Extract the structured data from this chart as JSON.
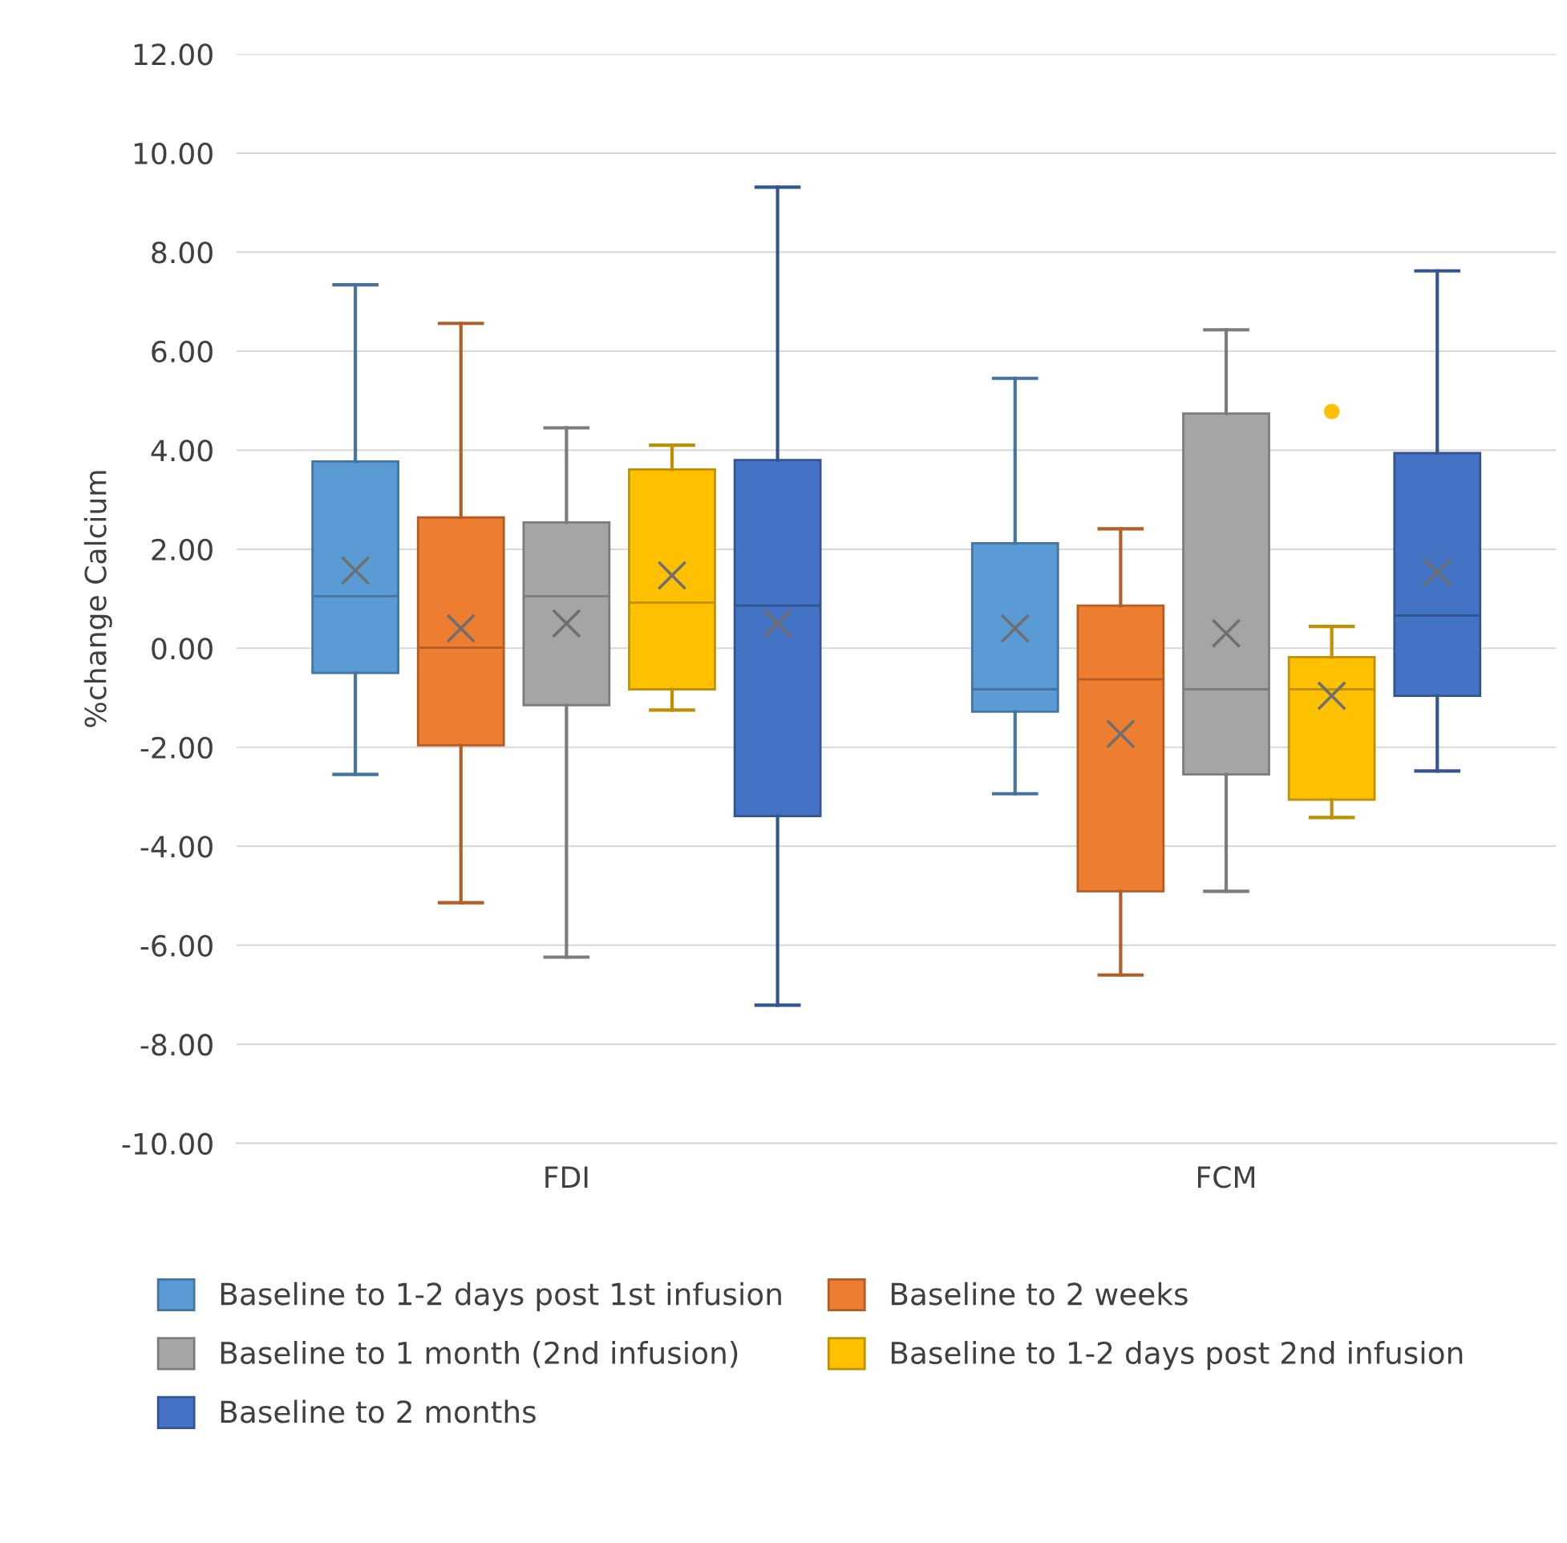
{
  "chart_data": {
    "type": "box",
    "ylabel": "%change Calcium",
    "categories": [
      "FDI",
      "FCM"
    ],
    "ylim": [
      -10,
      12
    ],
    "yticks": [
      {
        "value": -10,
        "label": "-10.00"
      },
      {
        "value": -8,
        "label": "-8.00"
      },
      {
        "value": -6,
        "label": "-6.00"
      },
      {
        "value": -4,
        "label": "-4.00"
      },
      {
        "value": -2,
        "label": "-2.00"
      },
      {
        "value": 0,
        "label": "0.00"
      },
      {
        "value": 2,
        "label": "2.00"
      },
      {
        "value": 4,
        "label": "4.00"
      },
      {
        "value": 6,
        "label": "6.00"
      },
      {
        "value": 8,
        "label": "8.00"
      },
      {
        "value": 10,
        "label": "10.00"
      },
      {
        "value": 12,
        "label": "12.00"
      }
    ],
    "grid": "y",
    "legend": "bottom",
    "series": [
      {
        "name": "Baseline to 1-2 days post 1st infusion",
        "color": "#5b9bd5",
        "boxes": [
          {
            "low": -2.55,
            "q1": -0.5,
            "median": 1.05,
            "q3": 3.77,
            "high": 7.34,
            "mean": 1.57
          },
          {
            "low": -2.94,
            "q1": -1.28,
            "median": -0.83,
            "q3": 2.12,
            "high": 5.45,
            "mean": 0.4
          }
        ]
      },
      {
        "name": "Baseline to 2 weeks",
        "color": "#ed7d31",
        "boxes": [
          {
            "low": -5.14,
            "q1": -1.96,
            "median": 0.01,
            "q3": 2.64,
            "high": 6.56,
            "mean": 0.4
          },
          {
            "low": -6.6,
            "q1": -4.91,
            "median": -0.63,
            "q3": 0.86,
            "high": 2.41,
            "mean": -1.73
          }
        ]
      },
      {
        "name": "Baseline to 1 month (2nd infusion)",
        "color": "#a5a5a5",
        "boxes": [
          {
            "low": -6.24,
            "q1": -1.15,
            "median": 1.05,
            "q3": 2.54,
            "high": 4.45,
            "mean": 0.5
          },
          {
            "low": -4.91,
            "q1": -2.55,
            "median": -0.83,
            "q3": 4.74,
            "high": 6.43,
            "mean": 0.3
          }
        ]
      },
      {
        "name": "Baseline to 1-2 days post 2nd infusion",
        "color": "#ffc000",
        "boxes": [
          {
            "low": -1.25,
            "q1": -0.83,
            "median": 0.92,
            "q3": 3.61,
            "high": 4.1,
            "mean": 1.47
          },
          {
            "low": -3.42,
            "q1": -3.06,
            "median": -0.83,
            "q3": -0.18,
            "high": 0.44,
            "mean": -0.96,
            "outliers": [
              4.78
            ]
          }
        ]
      },
      {
        "name": "Baseline to 2 months",
        "color": "#4472c4",
        "boxes": [
          {
            "low": -7.21,
            "q1": -3.39,
            "median": 0.86,
            "q3": 3.8,
            "high": 9.31,
            "mean": 0.5
          },
          {
            "low": -2.48,
            "q1": -0.96,
            "median": 0.66,
            "q3": 3.94,
            "high": 7.62,
            "mean": 1.53
          }
        ]
      }
    ]
  }
}
